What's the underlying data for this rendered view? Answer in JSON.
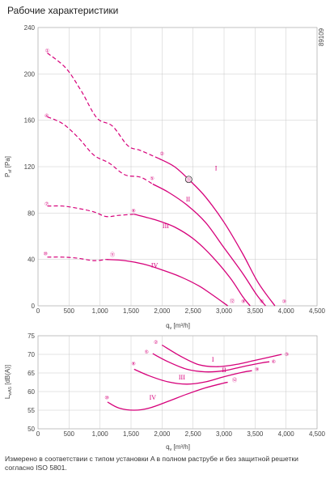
{
  "header": {
    "title": "Рабочие характеристики"
  },
  "footnote": "Измерено в соответствии с типом установки A в полном раструбе и без защитной решетки согласно ISO 5801.",
  "accent_color": "#d6007a",
  "chart_data": [
    {
      "type": "line",
      "code": "89109",
      "ylabel": "P_sf [Pa]",
      "xlabel": "q_v [m³/h]",
      "xlim": [
        0,
        4500
      ],
      "ylim": [
        0,
        240
      ],
      "xticks": [
        "0",
        "500",
        "1,000",
        "1,500",
        "2,000",
        "2,500",
        "3,000",
        "3,500",
        "4,000",
        "4,500"
      ],
      "yticks": [
        "0",
        "40",
        "80",
        "120",
        "160",
        "200",
        "240"
      ],
      "operating_point": {
        "label": "⑪",
        "x": 2430,
        "y": 109
      },
      "series": [
        {
          "name": "I",
          "label_at": [
            2870,
            117
          ],
          "dashed": [
            [
              150,
              218
            ],
            [
              450,
              205
            ],
            [
              700,
              185
            ],
            [
              950,
              162
            ],
            [
              1200,
              155
            ],
            [
              1450,
              138
            ],
            [
              1650,
              134
            ],
            [
              1950,
              127
            ]
          ],
          "solid": [
            [
              1950,
              127
            ],
            [
              2200,
              120
            ],
            [
              2450,
              108
            ],
            [
              2700,
              94
            ],
            [
              3000,
              72
            ],
            [
              3300,
              45
            ],
            [
              3550,
              20
            ],
            [
              3820,
              0
            ]
          ],
          "points": [
            {
              "label": "①",
              "x": 150,
              "y": 220
            },
            {
              "label": "②",
              "x": 2000,
              "y": 131
            },
            {
              "label": "③",
              "x": 3970,
              "y": 4
            }
          ]
        },
        {
          "name": "II",
          "label_at": [
            2420,
            90
          ],
          "dashed": [
            [
              150,
              163
            ],
            [
              400,
              157
            ],
            [
              650,
              145
            ],
            [
              900,
              130
            ],
            [
              1150,
              123
            ],
            [
              1400,
              113
            ],
            [
              1650,
              111
            ],
            [
              1850,
              105
            ]
          ],
          "solid": [
            [
              1850,
              105
            ],
            [
              2100,
              98
            ],
            [
              2400,
              87
            ],
            [
              2700,
              72
            ],
            [
              3000,
              50
            ],
            [
              3300,
              28
            ],
            [
              3520,
              10
            ],
            [
              3670,
              0
            ]
          ],
          "points": [
            {
              "label": "④",
              "x": 140,
              "y": 164
            },
            {
              "label": "⑤",
              "x": 1840,
              "y": 110
            },
            {
              "label": "⑥",
              "x": 3610,
              "y": 4
            }
          ]
        },
        {
          "name": "III",
          "label_at": [
            2060,
            67
          ],
          "dashed": [
            [
              150,
              86
            ],
            [
              400,
              86
            ],
            [
              650,
              84
            ],
            [
              900,
              81
            ],
            [
              1100,
              77
            ],
            [
              1300,
              78
            ],
            [
              1550,
              79
            ]
          ],
          "solid": [
            [
              1550,
              79
            ],
            [
              1900,
              74
            ],
            [
              2200,
              68
            ],
            [
              2500,
              58
            ],
            [
              2800,
              43
            ],
            [
              3100,
              24
            ],
            [
              3300,
              8
            ],
            [
              3420,
              0
            ]
          ],
          "points": [
            {
              "label": "⑦",
              "x": 140,
              "y": 88
            },
            {
              "label": "⑧",
              "x": 1540,
              "y": 82
            },
            {
              "label": "⑨",
              "x": 3310,
              "y": 4
            }
          ]
        },
        {
          "name": "IV",
          "label_at": [
            1880,
            33
          ],
          "dashed": [
            [
              150,
              42
            ],
            [
              400,
              42
            ],
            [
              650,
              41
            ],
            [
              900,
              39
            ],
            [
              1100,
              40
            ]
          ],
          "solid": [
            [
              1100,
              40
            ],
            [
              1400,
              39
            ],
            [
              1700,
              36
            ],
            [
              2000,
              31
            ],
            [
              2300,
              25
            ],
            [
              2600,
              17
            ],
            [
              2850,
              8
            ],
            [
              3060,
              0
            ]
          ],
          "points": [
            {
              "label": "⑩",
              "x": 120,
              "y": 45
            },
            {
              "label": "⑪",
              "x": 1200,
              "y": 44
            },
            {
              "label": "⑫",
              "x": 3130,
              "y": 4
            }
          ]
        }
      ]
    },
    {
      "type": "line",
      "ylabel": "L_wA5 [dB(A)]",
      "xlabel": "q_v [m³/h]",
      "xlim": [
        0,
        4500
      ],
      "ylim": [
        50,
        75
      ],
      "xticks": [
        "0",
        "500",
        "1,000",
        "1,500",
        "2,000",
        "2,500",
        "3,000",
        "3,500",
        "4,000",
        "4,500"
      ],
      "yticks": [
        "50",
        "55",
        "60",
        "65",
        "70",
        "75"
      ],
      "series": [
        {
          "name": "I",
          "label_at": [
            2820,
            68
          ],
          "points_xy": [
            [
              2000,
              72.5
            ],
            [
              2300,
              69.5
            ],
            [
              2600,
              67.2
            ],
            [
              2900,
              66.7
            ],
            [
              3200,
              67.3
            ],
            [
              3500,
              68.4
            ],
            [
              3800,
              69.5
            ],
            [
              3930,
              70
            ]
          ],
          "points": [
            {
              "label": "②",
              "x": 1900,
              "y": 73.3
            },
            {
              "label": "③",
              "x": 4010,
              "y": 70.0
            }
          ]
        },
        {
          "name": "II",
          "label_at": [
            3000,
            65.2
          ],
          "points_xy": [
            [
              1850,
              70.2
            ],
            [
              2100,
              68
            ],
            [
              2400,
              66
            ],
            [
              2700,
              65.3
            ],
            [
              3000,
              65.6
            ],
            [
              3300,
              66.7
            ],
            [
              3600,
              67.7
            ],
            [
              3730,
              68
            ]
          ],
          "points": [
            {
              "label": "⑤",
              "x": 1750,
              "y": 70.7
            },
            {
              "label": "⑥",
              "x": 3800,
              "y": 68.0
            }
          ]
        },
        {
          "name": "III",
          "label_at": [
            2320,
            63.3
          ],
          "points_xy": [
            [
              1550,
              66
            ],
            [
              1800,
              64.2
            ],
            [
              2100,
              62.6
            ],
            [
              2400,
              62
            ],
            [
              2700,
              62.6
            ],
            [
              3000,
              64
            ],
            [
              3300,
              65.2
            ],
            [
              3450,
              65.6
            ]
          ],
          "points": [
            {
              "label": "⑧",
              "x": 1540,
              "y": 67.5
            },
            {
              "label": "⑨",
              "x": 3530,
              "y": 66.0
            }
          ]
        },
        {
          "name": "IV",
          "label_at": [
            1850,
            57.8
          ],
          "points_xy": [
            [
              1120,
              57.2
            ],
            [
              1300,
              55.6
            ],
            [
              1550,
              55
            ],
            [
              1800,
              55.6
            ],
            [
              2100,
              57.4
            ],
            [
              2400,
              59.3
            ],
            [
              2700,
              61
            ],
            [
              3000,
              62.3
            ],
            [
              3060,
              62.5
            ]
          ],
          "points": [
            {
              "label": "⑩",
              "x": 1110,
              "y": 58.4
            },
            {
              "label": "⑫",
              "x": 3170,
              "y": 63.0
            }
          ]
        }
      ]
    }
  ]
}
